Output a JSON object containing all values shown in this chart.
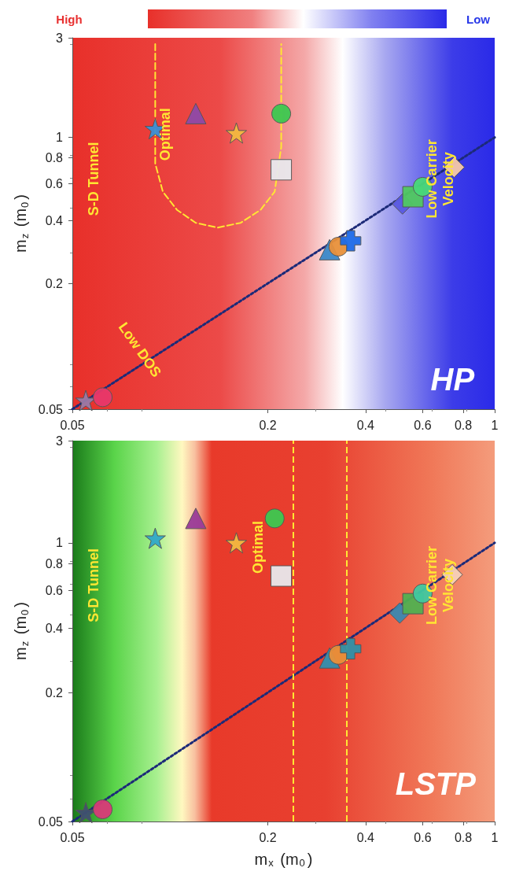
{
  "chart_data": [
    {
      "type": "scatter",
      "ylabel": "m$_{z}$ (m$_{0}$)",
      "xlim": [
        0.05,
        1
      ],
      "ylim": [
        0.05,
        3
      ],
      "xticks": [
        0.05,
        0.2,
        0.4,
        0.6,
        0.8,
        1
      ],
      "yticks": [
        0.05,
        0.2,
        0.4,
        0.6,
        0.8,
        1,
        3
      ],
      "log": "xy",
      "grid": false,
      "annotations": [
        "High",
        "Low",
        "S-D Tunnel",
        "Optimal",
        "Low DOS",
        "Low Carrier\nVelocity",
        "HP"
      ],
      "series": [
        {
          "type": "line",
          "x": [
            0.09,
            0.09,
            0.095,
            0.105,
            0.12,
            0.14,
            0.165,
            0.19,
            0.21,
            0.22,
            0.22
          ],
          "values": [
            2.8,
            0.75,
            0.55,
            0.45,
            0.39,
            0.37,
            0.39,
            0.45,
            0.55,
            0.9,
            2.8
          ],
          "color": "#ffe633",
          "marker": "none",
          "line_style": "dashed"
        },
        {
          "type": "line",
          "x": [
            0.05,
            1
          ],
          "values": [
            0.05,
            1
          ],
          "color": "#1c2a78",
          "marker": "none",
          "line_style": "dotted"
        },
        {
          "x": [
            0.09
          ],
          "values": [
            1.1
          ],
          "color": "#3a8fd8",
          "marker": "star"
        },
        {
          "x": [
            0.12
          ],
          "values": [
            1.3
          ],
          "color": "#8e4aa8",
          "marker": "triangle"
        },
        {
          "x": [
            0.16
          ],
          "values": [
            1.05
          ],
          "color": "#f2b840",
          "marker": "star"
        },
        {
          "x": [
            0.22
          ],
          "values": [
            1.3
          ],
          "color": "#3cc850",
          "marker": "circle"
        },
        {
          "x": [
            0.22
          ],
          "values": [
            0.7
          ],
          "color": "#e8e8ec",
          "marker": "square"
        },
        {
          "x": [
            0.31
          ],
          "values": [
            0.29
          ],
          "color": "#3a88c8",
          "marker": "triangle"
        },
        {
          "x": [
            0.33
          ],
          "values": [
            0.3
          ],
          "color": "#e8903a",
          "marker": "circle"
        },
        {
          "x": [
            0.36
          ],
          "values": [
            0.32
          ],
          "color": "#1c6ae8",
          "marker": "cross"
        },
        {
          "x": [
            0.52
          ],
          "values": [
            0.48
          ],
          "color": "#5a5ae0",
          "marker": "diamond"
        },
        {
          "x": [
            0.56
          ],
          "values": [
            0.52
          ],
          "color": "#50c860",
          "marker": "square"
        },
        {
          "x": [
            0.6
          ],
          "values": [
            0.58
          ],
          "color": "#48d878",
          "marker": "circle"
        },
        {
          "x": [
            0.75
          ],
          "values": [
            0.72
          ],
          "color": "#f6c8a8",
          "marker": "diamond"
        },
        {
          "x": [
            0.055
          ],
          "values": [
            0.055
          ],
          "color": "#9a7aa8",
          "marker": "star"
        },
        {
          "x": [
            0.062
          ],
          "values": [
            0.057
          ],
          "color": "#e8386a",
          "marker": "circle"
        }
      ]
    },
    {
      "type": "scatter",
      "xlabel": "m$_{x}$ (m$_{0}$)",
      "ylabel": "m$_{z}$ (m$_{0}$)",
      "xlim": [
        0.05,
        1
      ],
      "ylim": [
        0.05,
        3
      ],
      "xticks": [
        0.05,
        0.2,
        0.4,
        0.6,
        0.8,
        1
      ],
      "yticks": [
        0.05,
        0.2,
        0.4,
        0.6,
        0.8,
        1,
        3
      ],
      "log": "xy",
      "grid": false,
      "annotations": [
        "S-D Tunnel",
        "Low Carrier\nVelocity",
        "LSTP",
        "Optimal"
      ],
      "ref_lines": [
        {
          "axis": "x",
          "value": 0.24,
          "color": "#ffe633",
          "line_style": "dashed"
        },
        {
          "axis": "x",
          "value": 0.35,
          "color": "#ffe633",
          "line_style": "dashed"
        }
      ],
      "series": [
        {
          "type": "line",
          "x": [
            0.05,
            1
          ],
          "values": [
            0.05,
            1
          ],
          "color": "#1c2a78",
          "marker": "none",
          "line_style": "dotted"
        },
        {
          "x": [
            0.09
          ],
          "values": [
            1.05
          ],
          "color": "#30a8c8",
          "marker": "star"
        },
        {
          "x": [
            0.12
          ],
          "values": [
            1.3
          ],
          "color": "#9a3a98",
          "marker": "triangle"
        },
        {
          "x": [
            0.16
          ],
          "values": [
            1.0
          ],
          "color": "#f2b840",
          "marker": "star"
        },
        {
          "x": [
            0.21
          ],
          "values": [
            1.3
          ],
          "color": "#3cc850",
          "marker": "circle"
        },
        {
          "x": [
            0.22
          ],
          "values": [
            0.7
          ],
          "color": "#e8e8ec",
          "marker": "square"
        },
        {
          "x": [
            0.31
          ],
          "values": [
            0.29
          ],
          "color": "#3090b0",
          "marker": "triangle"
        },
        {
          "x": [
            0.33
          ],
          "values": [
            0.3
          ],
          "color": "#e8903a",
          "marker": "circle"
        },
        {
          "x": [
            0.36
          ],
          "values": [
            0.32
          ],
          "color": "#3090a8",
          "marker": "cross"
        },
        {
          "x": [
            0.51
          ],
          "values": [
            0.47
          ],
          "color": "#3a88b0",
          "marker": "diamond"
        },
        {
          "x": [
            0.56
          ],
          "values": [
            0.52
          ],
          "color": "#50b050",
          "marker": "square"
        },
        {
          "x": [
            0.6
          ],
          "values": [
            0.58
          ],
          "color": "#40c8a0",
          "marker": "circle"
        },
        {
          "x": [
            0.74
          ],
          "values": [
            0.71
          ],
          "color": "#f6d0b8",
          "marker": "diamond"
        },
        {
          "x": [
            0.055
          ],
          "values": [
            0.055
          ],
          "color": "#405070",
          "marker": "star"
        },
        {
          "x": [
            0.062
          ],
          "values": [
            0.057
          ],
          "color": "#d83a78",
          "marker": "circle"
        }
      ]
    }
  ]
}
